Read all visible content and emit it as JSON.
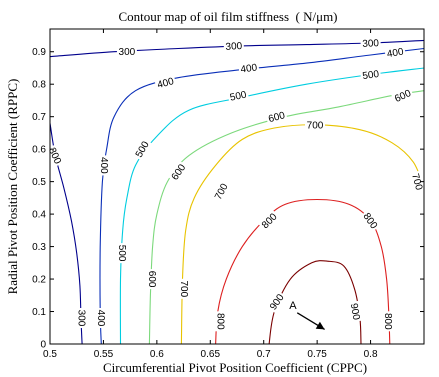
{
  "chart_data": {
    "type": "contour",
    "title": "Contour map of oil film stiffness  ( N/μm)",
    "xlabel": "Circumferential Pivot Position Coefficient (CPPC)",
    "ylabel": "Radial Pivot Position Coefficient (RPPC)",
    "xlim": [
      0.5,
      0.85
    ],
    "ylim": [
      0,
      0.97
    ],
    "xticks": [
      "0.5",
      "0.55",
      "0.6",
      "0.65",
      "0.7",
      "0.75",
      "0.8"
    ],
    "xtick_values": [
      0.5,
      0.55,
      0.6,
      0.65,
      0.7,
      0.75,
      0.8
    ],
    "yticks": [
      "0",
      "0.1",
      "0.2",
      "0.3",
      "0.4",
      "0.5",
      "0.6",
      "0.7",
      "0.8",
      "0.9"
    ],
    "ytick_values": [
      0,
      0.1,
      0.2,
      0.3,
      0.4,
      0.5,
      0.6,
      0.7,
      0.8,
      0.9
    ],
    "levels": [
      {
        "level": 300,
        "color": "#00008c",
        "paths": [
          [
            [
              0.5,
              0.885
            ],
            [
              0.56,
              0.9
            ],
            [
              0.62,
              0.91
            ],
            [
              0.68,
              0.918
            ],
            [
              0.74,
              0.922
            ],
            [
              0.8,
              0.927
            ],
            [
              0.85,
              0.935
            ]
          ],
          [
            [
              0.5,
              0.68
            ],
            [
              0.505,
              0.58
            ],
            [
              0.513,
              0.48
            ],
            [
              0.52,
              0.38
            ],
            [
              0.525,
              0.28
            ],
            [
              0.528,
              0.18
            ],
            [
              0.529,
              0.08
            ],
            [
              0.53,
              0.0
            ]
          ]
        ],
        "labels": [
          {
            "text": "300",
            "x": 0.572,
            "y": 0.9,
            "rot": 0
          },
          {
            "text": "300",
            "x": 0.672,
            "y": 0.918,
            "rot": -3
          },
          {
            "text": "300",
            "x": 0.8,
            "y": 0.927,
            "rot": -3
          },
          {
            "text": "300",
            "x": 0.505,
            "y": 0.58,
            "rot": 65
          },
          {
            "text": "300",
            "x": 0.53,
            "y": 0.08,
            "rot": 90
          }
        ]
      },
      {
        "level": 400,
        "color": "#0a2fb8",
        "paths": [
          [
            [
              0.85,
              0.91
            ],
            [
              0.8,
              0.89
            ],
            [
              0.74,
              0.865
            ],
            [
              0.68,
              0.845
            ],
            [
              0.62,
              0.82
            ],
            [
              0.58,
              0.78
            ],
            [
              0.56,
              0.7
            ],
            [
              0.553,
              0.6
            ],
            [
              0.549,
              0.5
            ],
            [
              0.547,
              0.3
            ],
            [
              0.547,
              0.1
            ],
            [
              0.548,
              0.0
            ]
          ]
        ],
        "labels": [
          {
            "text": "400",
            "x": 0.686,
            "y": 0.85,
            "rot": -8
          },
          {
            "text": "400",
            "x": 0.823,
            "y": 0.898,
            "rot": -10
          },
          {
            "text": "400",
            "x": 0.608,
            "y": 0.805,
            "rot": -15
          },
          {
            "text": "400",
            "x": 0.551,
            "y": 0.55,
            "rot": 90
          },
          {
            "text": "400",
            "x": 0.548,
            "y": 0.08,
            "rot": 90
          }
        ]
      },
      {
        "level": 500,
        "color": "#00cde0",
        "paths": [
          [
            [
              0.85,
              0.85
            ],
            [
              0.8,
              0.83
            ],
            [
              0.74,
              0.8
            ],
            [
              0.68,
              0.76
            ],
            [
              0.63,
              0.72
            ],
            [
              0.6,
              0.64
            ],
            [
              0.58,
              0.55
            ],
            [
              0.572,
              0.45
            ],
            [
              0.568,
              0.35
            ],
            [
              0.566,
              0.2
            ],
            [
              0.566,
              0.0
            ]
          ]
        ],
        "labels": [
          {
            "text": "500",
            "x": 0.676,
            "y": 0.765,
            "rot": -12
          },
          {
            "text": "500",
            "x": 0.8,
            "y": 0.83,
            "rot": -8
          },
          {
            "text": "500",
            "x": 0.586,
            "y": 0.6,
            "rot": -60
          },
          {
            "text": "500",
            "x": 0.568,
            "y": 0.28,
            "rot": 90
          }
        ]
      },
      {
        "level": 600,
        "color": "#7cd97c",
        "paths": [
          [
            [
              0.85,
              0.78
            ],
            [
              0.82,
              0.765
            ],
            [
              0.77,
              0.73
            ],
            [
              0.72,
              0.7
            ],
            [
              0.67,
              0.65
            ],
            [
              0.63,
              0.58
            ],
            [
              0.61,
              0.5
            ],
            [
              0.6,
              0.4
            ],
            [
              0.596,
              0.3
            ],
            [
              0.594,
              0.15
            ],
            [
              0.593,
              0.0
            ]
          ]
        ],
        "labels": [
          {
            "text": "600",
            "x": 0.83,
            "y": 0.765,
            "rot": -25
          },
          {
            "text": "600",
            "x": 0.712,
            "y": 0.7,
            "rot": -15
          },
          {
            "text": "600",
            "x": 0.62,
            "y": 0.53,
            "rot": -55
          },
          {
            "text": "600",
            "x": 0.596,
            "y": 0.2,
            "rot": 90
          }
        ]
      },
      {
        "level": 700,
        "color": "#e8c300",
        "paths": [
          [
            [
              0.85,
              0.48
            ],
            [
              0.84,
              0.56
            ],
            [
              0.82,
              0.62
            ],
            [
              0.79,
              0.66
            ],
            [
              0.75,
              0.675
            ],
            [
              0.71,
              0.665
            ],
            [
              0.68,
              0.63
            ],
            [
              0.655,
              0.55
            ],
            [
              0.635,
              0.45
            ],
            [
              0.627,
              0.35
            ],
            [
              0.624,
              0.2
            ],
            [
              0.623,
              0.0
            ]
          ]
        ],
        "labels": [
          {
            "text": "700",
            "x": 0.748,
            "y": 0.675,
            "rot": 0
          },
          {
            "text": "700",
            "x": 0.844,
            "y": 0.5,
            "rot": 75
          },
          {
            "text": "700",
            "x": 0.66,
            "y": 0.47,
            "rot": -62
          },
          {
            "text": "700",
            "x": 0.626,
            "y": 0.17,
            "rot": 90
          }
        ]
      },
      {
        "level": 800,
        "color": "#dd1f1f",
        "paths": [
          [
            [
              0.655,
              0.0
            ],
            [
              0.657,
              0.1
            ],
            [
              0.665,
              0.2
            ],
            [
              0.68,
              0.3
            ],
            [
              0.7,
              0.38
            ],
            [
              0.72,
              0.43
            ],
            [
              0.75,
              0.445
            ],
            [
              0.78,
              0.43
            ],
            [
              0.8,
              0.38
            ],
            [
              0.81,
              0.3
            ],
            [
              0.815,
              0.2
            ],
            [
              0.817,
              0.1
            ],
            [
              0.818,
              0.0
            ]
          ]
        ],
        "labels": [
          {
            "text": "800",
            "x": 0.705,
            "y": 0.38,
            "rot": -45
          },
          {
            "text": "800",
            "x": 0.8,
            "y": 0.38,
            "rot": 55
          },
          {
            "text": "800",
            "x": 0.66,
            "y": 0.07,
            "rot": 90
          },
          {
            "text": "800",
            "x": 0.817,
            "y": 0.07,
            "rot": 90
          }
        ]
      },
      {
        "level": 900,
        "color": "#7a0000",
        "paths": [
          [
            [
              0.705,
              0.0
            ],
            [
              0.71,
              0.1
            ],
            [
              0.725,
              0.2
            ],
            [
              0.745,
              0.25
            ],
            [
              0.76,
              0.255
            ],
            [
              0.775,
              0.24
            ],
            [
              0.785,
              0.17
            ],
            [
              0.79,
              0.08
            ],
            [
              0.791,
              0.0
            ]
          ]
        ],
        "labels": [
          {
            "text": "900",
            "x": 0.712,
            "y": 0.13,
            "rot": -55
          },
          {
            "text": "900",
            "x": 0.786,
            "y": 0.1,
            "rot": 80
          }
        ]
      }
    ],
    "annotation": {
      "text": "A",
      "x": 0.737,
      "y": 0.09,
      "arrow_to": [
        0.757,
        0.045
      ]
    }
  }
}
